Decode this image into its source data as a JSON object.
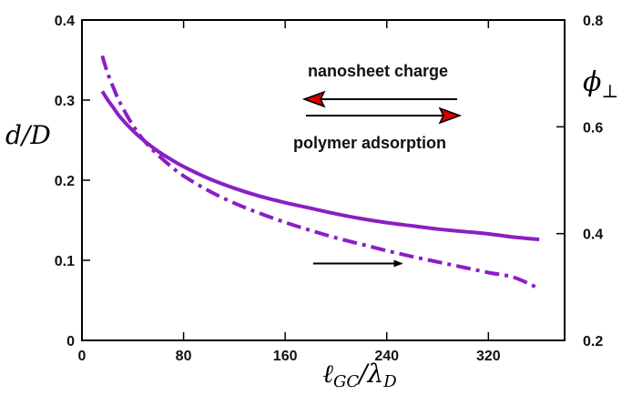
{
  "chart_data": {
    "type": "line",
    "title": "",
    "xlabel": "ℓGC/λD",
    "ylabel_left": "d/D",
    "ylabel_right": "ϕ⊥",
    "xlim": [
      0,
      380
    ],
    "ylim_left": [
      0,
      0.4
    ],
    "ylim_right": [
      0.2,
      0.8
    ],
    "x_ticks": [
      {
        "value": 0,
        "label": "0"
      },
      {
        "value": 80,
        "label": "80"
      },
      {
        "value": 160,
        "label": "160"
      },
      {
        "value": 240,
        "label": "240"
      },
      {
        "value": 320,
        "label": "320"
      }
    ],
    "y_left_ticks": [
      {
        "value": 0,
        "label": "0"
      },
      {
        "value": 0.1,
        "label": "0.1"
      },
      {
        "value": 0.2,
        "label": "0.2"
      },
      {
        "value": 0.3,
        "label": "0.3"
      },
      {
        "value": 0.4,
        "label": "0.4"
      }
    ],
    "y_right_ticks": [
      {
        "value": 0.2,
        "label": "0.2"
      },
      {
        "value": 0.4,
        "label": "0.4"
      },
      {
        "value": 0.6,
        "label": "0.6"
      },
      {
        "value": 0.8,
        "label": "0.8"
      }
    ],
    "grid": false,
    "series": [
      {
        "axis": "left",
        "style": "solid",
        "color": "#8a1fc4",
        "x": [
          16,
          20,
          25,
          30,
          40,
          50,
          60,
          70,
          80,
          100,
          120,
          140,
          160,
          180,
          200,
          220,
          240,
          260,
          280,
          300,
          320,
          340,
          360
        ],
        "y": [
          0.311,
          0.301,
          0.29,
          0.279,
          0.262,
          0.248,
          0.236,
          0.226,
          0.217,
          0.202,
          0.19,
          0.18,
          0.172,
          0.165,
          0.158,
          0.152,
          0.147,
          0.143,
          0.139,
          0.136,
          0.133,
          0.129,
          0.126
        ]
      },
      {
        "axis": "right",
        "style": "dashdot",
        "color": "#8a1fc4",
        "x": [
          16,
          20,
          25,
          30,
          40,
          50,
          60,
          70,
          80,
          100,
          120,
          140,
          160,
          180,
          200,
          220,
          240,
          260,
          280,
          300,
          320,
          340,
          360
        ],
        "y": [
          0.733,
          0.702,
          0.672,
          0.645,
          0.603,
          0.571,
          0.547,
          0.526,
          0.508,
          0.48,
          0.457,
          0.438,
          0.421,
          0.406,
          0.392,
          0.38,
          0.368,
          0.357,
          0.347,
          0.337,
          0.327,
          0.318,
          0.297
        ]
      }
    ],
    "annotations": [
      {
        "text": "nanosheet charge",
        "arrow": "left"
      },
      {
        "text": "polymer adsorption",
        "arrow": "right"
      }
    ],
    "axis_indicator_arrow": {
      "x": [
        182,
        252
      ],
      "y_left": 0.096,
      "direction": "right"
    }
  }
}
